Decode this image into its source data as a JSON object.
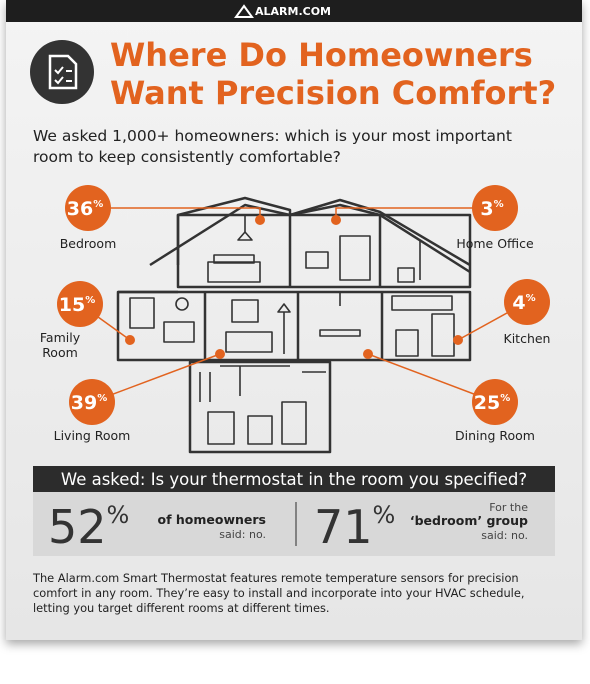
{
  "header": {
    "logo": "ALARM.COM"
  },
  "title": [
    "Where Do Homeowners",
    "Want Precision Comfort?"
  ],
  "question": [
    "We asked 1,000+ homeowners: which is your most important",
    "room to keep consistently comfortable?"
  ],
  "rooms": [
    {
      "value": "36",
      "unit": "%",
      "label": [
        "Bedroom"
      ]
    },
    {
      "value": "3",
      "unit": "%",
      "label": [
        "Home Office"
      ]
    },
    {
      "value": "15",
      "unit": "%",
      "label": [
        "Family",
        "Room"
      ]
    },
    {
      "value": "4",
      "unit": "%",
      "label": [
        "Kitchen"
      ]
    },
    {
      "value": "39",
      "unit": "%",
      "label": [
        "Living Room"
      ]
    },
    {
      "value": "25",
      "unit": "%",
      "label": [
        "Dining Room"
      ]
    }
  ],
  "survey": {
    "question": "We asked: Is your thermostat in the room you specified?",
    "stats": [
      {
        "value": "52",
        "unit": "%",
        "text": [
          "of homeowners",
          "said: no."
        ]
      },
      {
        "value": "71",
        "unit": "%",
        "text": [
          "For the",
          "‘bedroom’ group",
          "said: no."
        ]
      }
    ]
  },
  "footer": [
    "The Alarm.com Smart Thermostat features remote temperature sensors for precision",
    "comfort in any room. They’re easy to install and incorporate into your HVAC schedule,",
    "letting you target different rooms at different times."
  ]
}
